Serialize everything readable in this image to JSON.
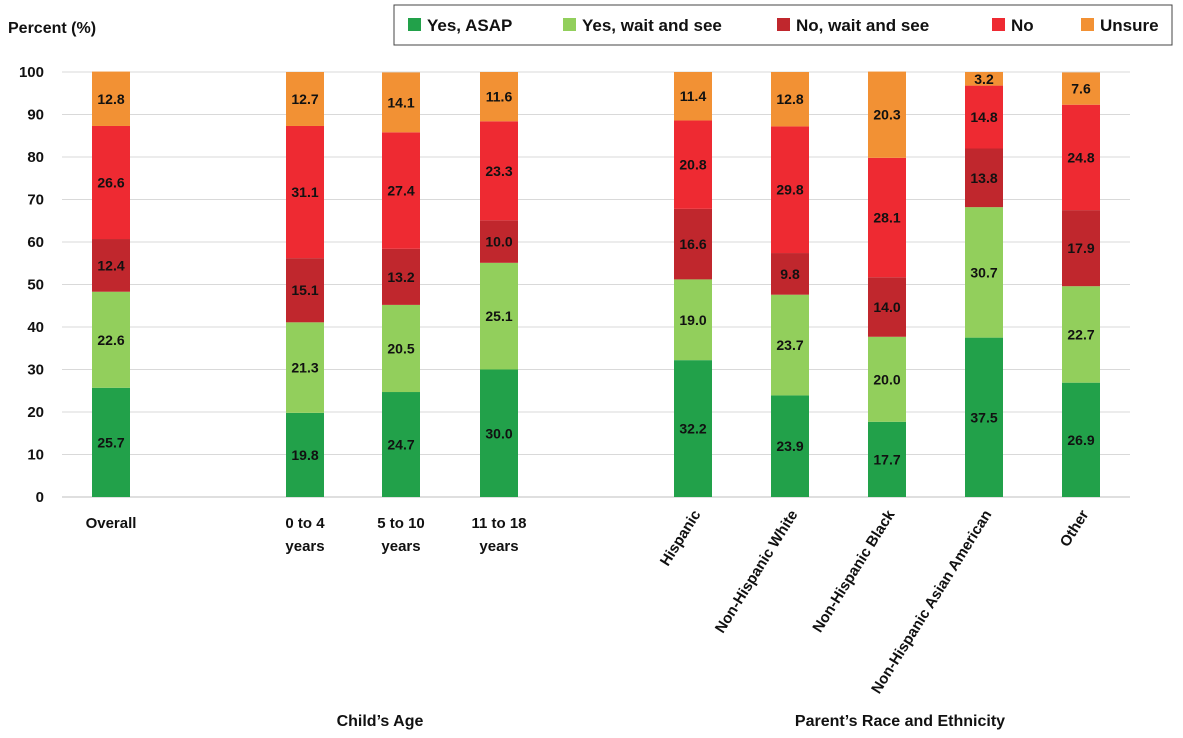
{
  "chart_data": {
    "type": "bar",
    "stacked": true,
    "ylabel": "Percent (%)",
    "ylim": [
      0,
      100
    ],
    "yticks": [
      0,
      10,
      20,
      30,
      40,
      50,
      60,
      70,
      80,
      90,
      100
    ],
    "grid": true,
    "legend_position": "top-right",
    "categories": [
      {
        "label": "Overall",
        "group": null
      },
      {
        "label": "0 to 4 years",
        "lines": [
          "0 to 4",
          "years"
        ],
        "group": "age"
      },
      {
        "label": "5 to 10 years",
        "lines": [
          "5 to 10",
          "years"
        ],
        "group": "age"
      },
      {
        "label": "11 to 18 years",
        "lines": [
          "11 to 18",
          "years"
        ],
        "group": "age"
      },
      {
        "label": "Hispanic",
        "group": "race",
        "rotated": true
      },
      {
        "label": "Non-Hispanic White",
        "group": "race",
        "rotated": true
      },
      {
        "label": "Non-Hispanic Black",
        "group": "race",
        "rotated": true
      },
      {
        "label": "Non-Hispanic Asian American",
        "group": "race",
        "rotated": true
      },
      {
        "label": "Other",
        "group": "race",
        "rotated": true
      }
    ],
    "groups": [
      {
        "id": "age",
        "title": "Child’s Age"
      },
      {
        "id": "race",
        "title": "Parent’s Race and Ethnicity"
      }
    ],
    "series": [
      {
        "name": "Yes, ASAP",
        "color": "#22a14a",
        "values": [
          25.7,
          19.8,
          24.7,
          30.0,
          32.2,
          23.9,
          17.7,
          37.5,
          26.9
        ]
      },
      {
        "name": "Yes, wait and see",
        "color": "#92cf5c",
        "values": [
          22.6,
          21.3,
          20.5,
          25.1,
          19.0,
          23.7,
          20.0,
          30.7,
          22.7
        ]
      },
      {
        "name": "No, wait and see",
        "color": "#c0272d",
        "values": [
          12.4,
          15.1,
          13.2,
          10.0,
          16.6,
          9.8,
          14.0,
          13.8,
          17.9
        ]
      },
      {
        "name": "No",
        "color": "#ee2a32",
        "values": [
          26.6,
          31.1,
          27.4,
          23.3,
          20.8,
          29.8,
          28.1,
          14.8,
          24.8
        ]
      },
      {
        "name": "Unsure",
        "color": "#f29134",
        "values": [
          12.8,
          12.7,
          14.1,
          11.6,
          11.4,
          12.8,
          20.3,
          3.2,
          7.6
        ]
      }
    ],
    "value_labels": [
      [
        "25.7",
        "19.8",
        "24.7",
        "30.0",
        "32.2",
        "23.9",
        "17.7",
        "37.5",
        "26.9"
      ],
      [
        "22.6",
        "21.3",
        "20.5",
        "25.1",
        "19.0",
        "23.7",
        "20.0",
        "30.7",
        "22.7"
      ],
      [
        "12.4",
        "15.1",
        "13.2",
        "10.0",
        "16.6",
        "9.8",
        "14.0",
        "13.8",
        "17.9"
      ],
      [
        "26.6",
        "31.1",
        "27.4",
        "23.3",
        "20.8",
        "29.8",
        "28.1",
        "14.8",
        "24.8"
      ],
      [
        "12.8",
        "12.7",
        "14.1",
        "11.6",
        "11.4",
        "12.8",
        "20.3",
        "3.2",
        "7.6"
      ]
    ]
  }
}
